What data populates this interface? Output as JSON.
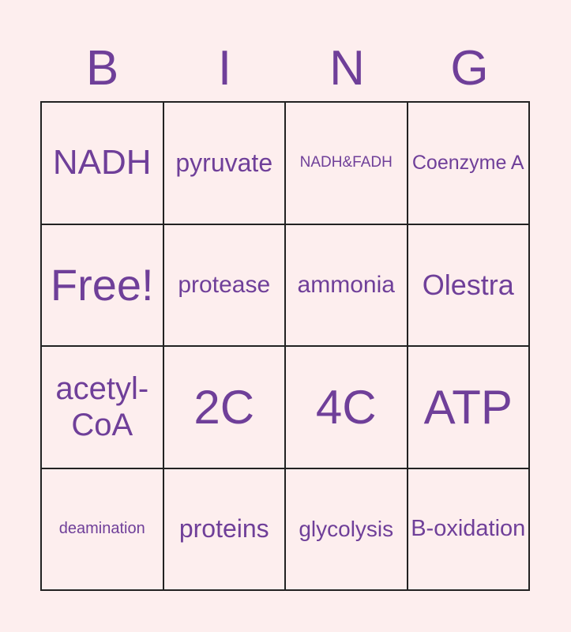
{
  "header": [
    "B",
    "I",
    "N",
    "G"
  ],
  "cells": [
    {
      "t": "NADH",
      "s": 44
    },
    {
      "t": "pyruvate",
      "s": 32
    },
    {
      "t": "NADH&FADH",
      "s": 19
    },
    {
      "t": "Coenzyme A",
      "s": 25
    },
    {
      "t": "Free!",
      "s": 56
    },
    {
      "t": "protease",
      "s": 30
    },
    {
      "t": "ammonia",
      "s": 30
    },
    {
      "t": "Olestra",
      "s": 36
    },
    {
      "t": "acetyl-CoA",
      "s": 40
    },
    {
      "t": "2C",
      "s": 60
    },
    {
      "t": "4C",
      "s": 60
    },
    {
      "t": "ATP",
      "s": 60
    },
    {
      "t": "deamination",
      "s": 20
    },
    {
      "t": "proteins",
      "s": 32
    },
    {
      "t": "glycolysis",
      "s": 28
    },
    {
      "t": "B-oxidation",
      "s": 29
    }
  ]
}
